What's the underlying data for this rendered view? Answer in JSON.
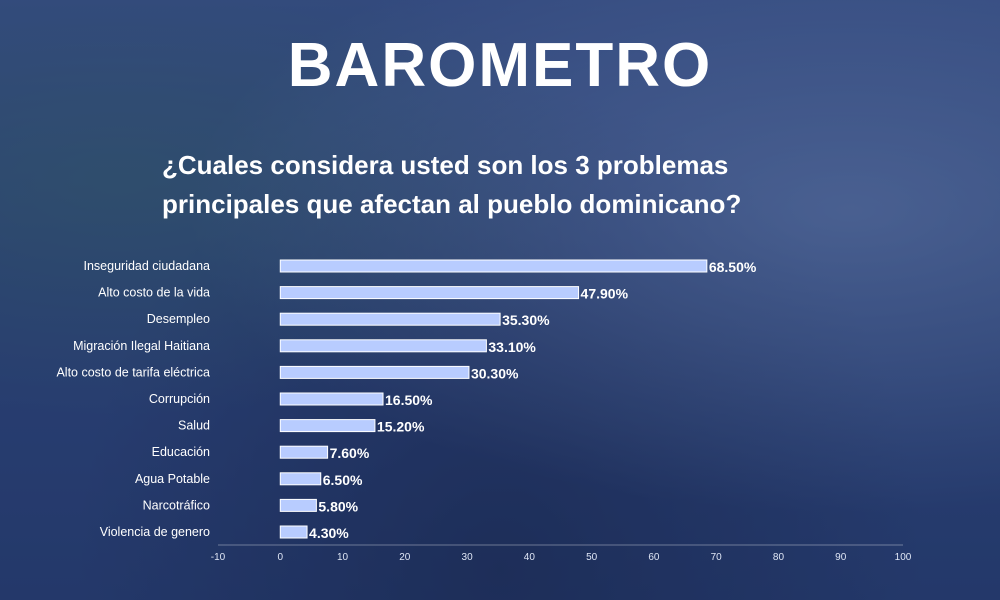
{
  "header": {
    "title": "BAROMETRO",
    "subtitle_line1": "¿Cuales considera usted son los 3 problemas",
    "subtitle_line2": "principales que afectan al pueblo dominicano?"
  },
  "colors": {
    "bar": "#b8ccff",
    "bar_border": "#ffffff",
    "label_text": "#ffffff"
  },
  "chart_data": {
    "type": "bar",
    "orientation": "horizontal",
    "title": "",
    "xlabel": "",
    "ylabel": "",
    "xlim": [
      -10,
      100
    ],
    "xticks": [
      -10,
      0,
      10,
      20,
      30,
      40,
      50,
      60,
      70,
      80,
      90,
      100
    ],
    "grid": false,
    "categories": [
      "Inseguridad ciudadana",
      "Alto costo de la vida",
      "Desempleo",
      "Migración Ilegal Haitiana",
      "Alto costo de tarifa eléctrica",
      "Corrupción",
      "Salud",
      "Educación",
      "Agua Potable",
      "Narcotráfico",
      "Violencia de genero"
    ],
    "values": [
      68.5,
      47.9,
      35.3,
      33.1,
      30.3,
      16.5,
      15.2,
      7.6,
      6.5,
      5.8,
      4.3
    ],
    "value_labels": [
      "68.50%",
      "47.90%",
      "35.30%",
      "33.10%",
      "30.30%",
      "16.50%",
      "15.20%",
      "7.60%",
      "6.50%",
      "5.80%",
      "4.30%"
    ]
  }
}
